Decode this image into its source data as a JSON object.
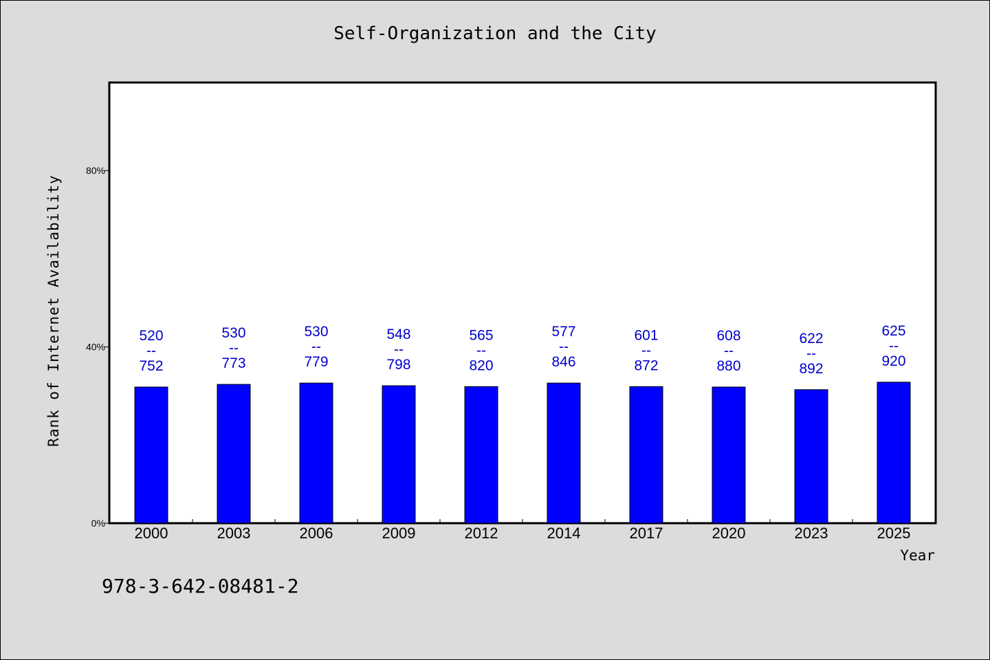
{
  "chart_data": {
    "type": "bar",
    "title": "Self-Organization and the City",
    "xlabel": "Year",
    "ylabel": "Rank of Internet Availability",
    "categories": [
      "2000",
      "2003",
      "2006",
      "2009",
      "2012",
      "2014",
      "2017",
      "2020",
      "2023",
      "2025"
    ],
    "values": [
      30.9,
      31.5,
      31.8,
      31.2,
      31.0,
      31.8,
      31.0,
      30.9,
      30.3,
      32.0
    ],
    "value_unit": "%",
    "data_labels": [
      [
        "520",
        "--",
        "752"
      ],
      [
        "530",
        "--",
        "773"
      ],
      [
        "530",
        "--",
        "779"
      ],
      [
        "548",
        "--",
        "798"
      ],
      [
        "565",
        "--",
        "820"
      ],
      [
        "577",
        "--",
        "846"
      ],
      [
        "601",
        "--",
        "872"
      ],
      [
        "608",
        "--",
        "880"
      ],
      [
        "622",
        "--",
        "892"
      ],
      [
        "625",
        "--",
        "920"
      ]
    ],
    "y_ticks": [
      "0%",
      "40%",
      "80%"
    ],
    "y_tick_values": [
      0,
      40,
      80
    ],
    "ylim": [
      0,
      100
    ],
    "grid": false,
    "legend": "none",
    "bar_color": "#0000ff",
    "label_color": "#0000cc"
  },
  "footnote": "978-3-642-08481-2"
}
